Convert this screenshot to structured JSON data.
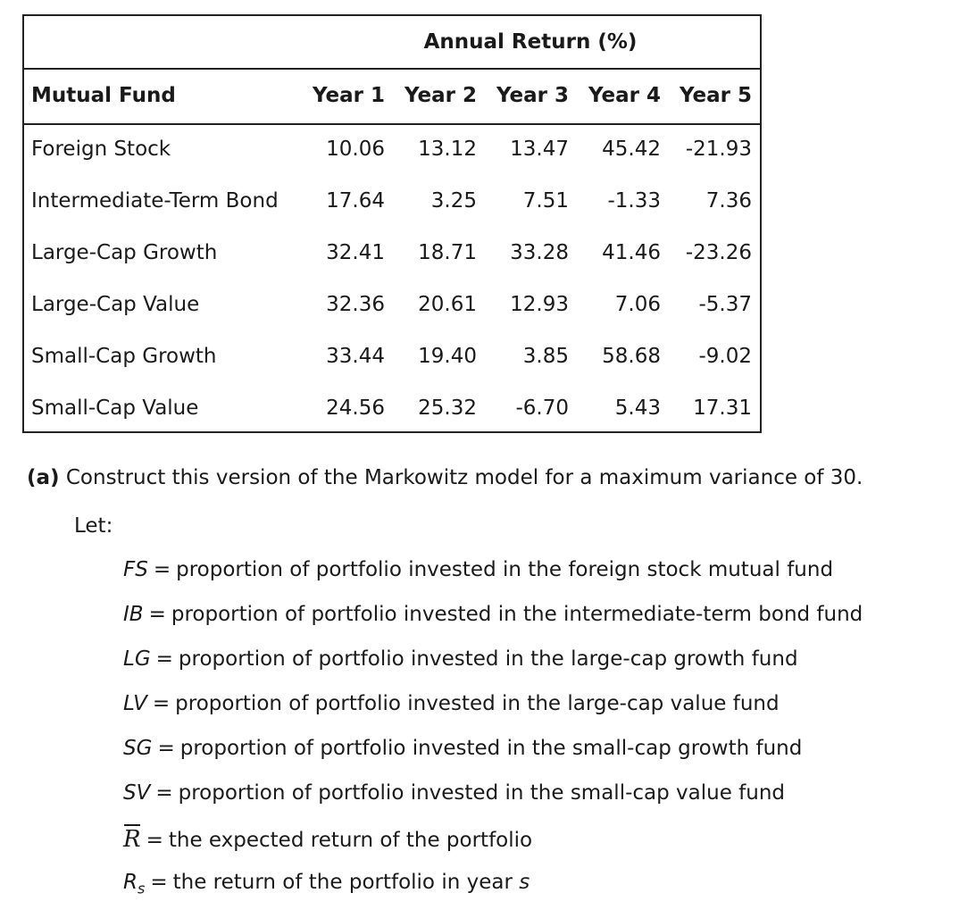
{
  "table": {
    "title": "Annual Return (%)",
    "header": {
      "fund": "Mutual Fund",
      "years": [
        "Year 1",
        "Year 2",
        "Year 3",
        "Year 4",
        "Year 5"
      ]
    },
    "rows": [
      {
        "name": "Foreign Stock",
        "values": [
          "10.06",
          "13.12",
          "13.47",
          "45.42",
          "-21.93"
        ]
      },
      {
        "name": "Intermediate-Term Bond",
        "values": [
          "17.64",
          "3.25",
          "7.51",
          "-1.33",
          "7.36"
        ]
      },
      {
        "name": "Large-Cap Growth",
        "values": [
          "32.41",
          "18.71",
          "33.28",
          "41.46",
          "-23.26"
        ]
      },
      {
        "name": "Large-Cap Value",
        "values": [
          "32.36",
          "20.61",
          "12.93",
          "7.06",
          "-5.37"
        ]
      },
      {
        "name": "Small-Cap Growth",
        "values": [
          "33.44",
          "19.40",
          "3.85",
          "58.68",
          "-9.02"
        ]
      },
      {
        "name": "Small-Cap Value",
        "values": [
          "24.56",
          "25.32",
          "-6.70",
          "5.43",
          "17.31"
        ]
      }
    ]
  },
  "question": {
    "label": "(a)",
    "text": "Construct this version of the Markowitz model for a maximum variance of 30."
  },
  "let_label": "Let:",
  "definitions": [
    {
      "var": "FS",
      "eq": "=",
      "text": "proportion of portfolio invested in the foreign stock mutual fund"
    },
    {
      "var": "IB",
      "eq": "=",
      "text": "proportion of portfolio invested in the intermediate-term bond fund"
    },
    {
      "var": "LG",
      "eq": "=",
      "text": "proportion of portfolio invested in the large-cap growth fund"
    },
    {
      "var": "LV",
      "eq": "=",
      "text": "proportion of portfolio invested in the large-cap value fund"
    },
    {
      "var": "SG",
      "eq": "=",
      "text": "proportion of portfolio invested in the small-cap growth fund"
    },
    {
      "var": "SV",
      "eq": "=",
      "text": "proportion of portfolio invested in the small-cap value fund"
    },
    {
      "var": "R",
      "eq": "=",
      "text": "the expected return of the portfolio"
    },
    {
      "var": "R",
      "sub": "s",
      "eq": "=",
      "text": "the return of the portfolio in year",
      "tail": "s"
    }
  ]
}
